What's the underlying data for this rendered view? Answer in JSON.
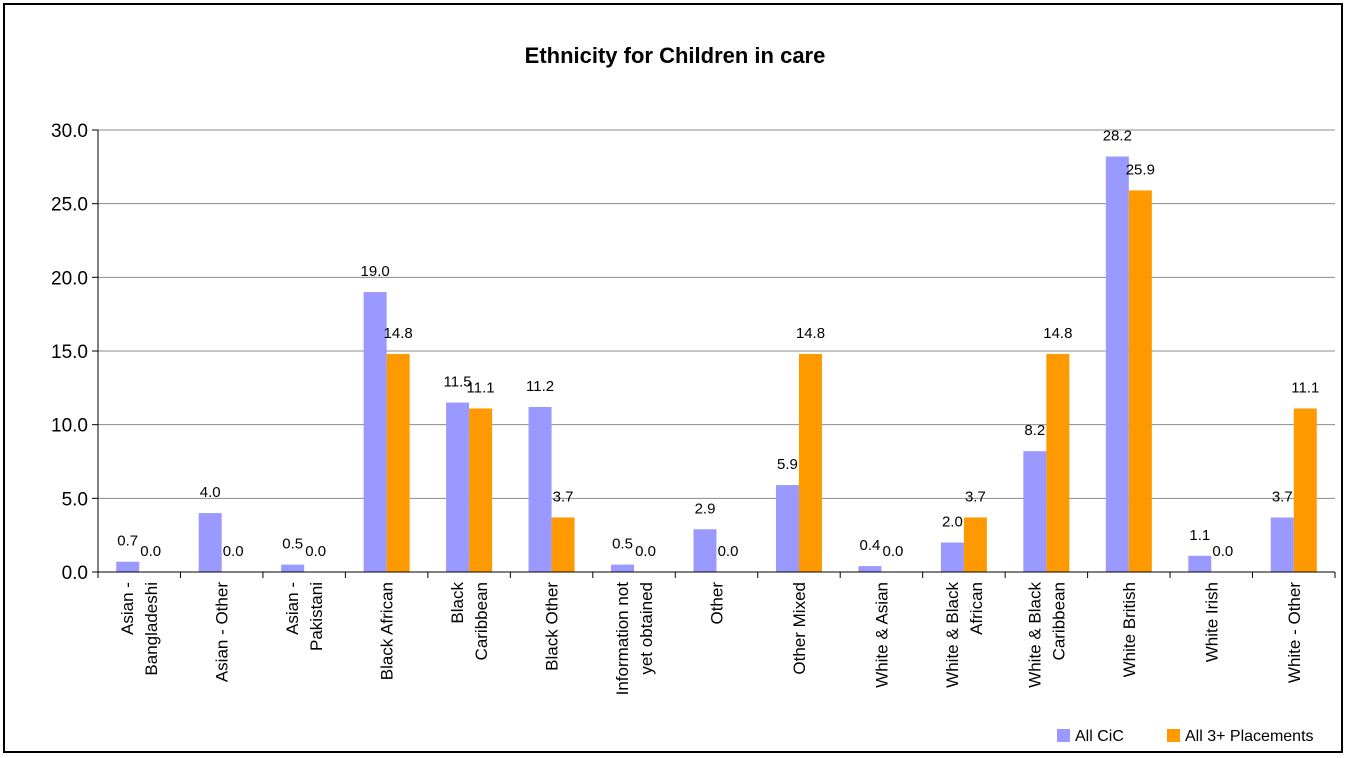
{
  "chart_data": {
    "type": "bar",
    "title": "Ethnicity for Children in care",
    "xlabel": "",
    "ylabel": "",
    "ylim": [
      0,
      30
    ],
    "yticks": [
      "0.0",
      "5.0",
      "10.0",
      "15.0",
      "20.0",
      "25.0",
      "30.0"
    ],
    "grid": true,
    "legend_position": "bottom-right",
    "categories": [
      [
        "Asian -",
        "Bangladeshi"
      ],
      [
        "Asian - Other"
      ],
      [
        "Asian -",
        "Pakistani"
      ],
      [
        "Black African"
      ],
      [
        "Black",
        "Caribbean"
      ],
      [
        "Black Other"
      ],
      [
        "Information not",
        "yet obtained"
      ],
      [
        "Other"
      ],
      [
        "Other Mixed"
      ],
      [
        "White & Asian"
      ],
      [
        "White &  Black",
        "African"
      ],
      [
        "White & Black",
        "Caribbean"
      ],
      [
        "White British"
      ],
      [
        "White Irish"
      ],
      [
        "White - Other"
      ]
    ],
    "series": [
      {
        "name": "All CiC",
        "color": "#9999ff",
        "values": [
          0.7,
          4.0,
          0.5,
          19.0,
          11.5,
          11.2,
          0.5,
          2.9,
          5.9,
          0.4,
          2.0,
          8.2,
          28.2,
          1.1,
          3.7
        ],
        "labels": [
          "0.7",
          "4.0",
          "0.5",
          "19.0",
          "11.5",
          "11.2",
          "0.5",
          "2.9",
          "5.9",
          "0.4",
          "2.0",
          "8.2",
          "28.2",
          "1.1",
          "3.7"
        ]
      },
      {
        "name": "All 3+ Placements",
        "color": "#ff9900",
        "values": [
          0.0,
          0.0,
          0.0,
          14.8,
          11.1,
          3.7,
          0.0,
          0.0,
          14.8,
          0.0,
          3.7,
          14.8,
          25.9,
          0.0,
          11.1
        ],
        "labels": [
          "0.0",
          "0.0",
          "0.0",
          "14.8",
          "11.1",
          "3.7",
          "0.0",
          "0.0",
          "14.8",
          "0.0",
          "3.7",
          "14.8",
          "25.9",
          "0.0",
          "11.1"
        ]
      }
    ]
  }
}
